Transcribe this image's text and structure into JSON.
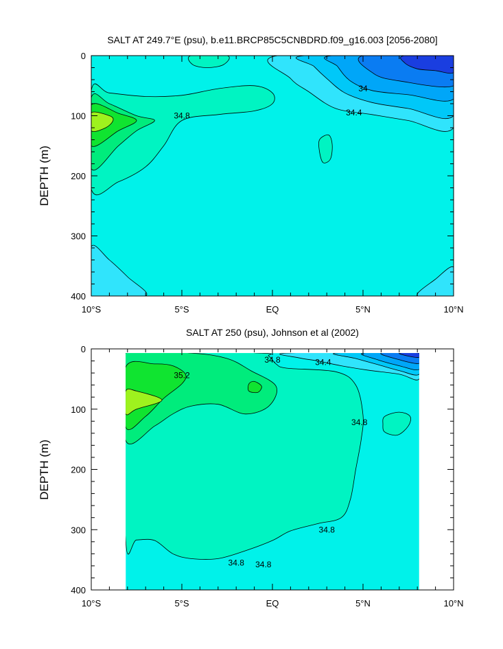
{
  "colors": {
    "c_lt_33_6": "#1a3ee0",
    "c_33_6_33_8": "#0a7cf2",
    "c_33_8_34_0": "#00a6f8",
    "c_34_0_34_2": "#00c8f8",
    "c_34_2_34_4": "#30e4fc",
    "c_34_4_34_8": "#00f2ea",
    "c_34_8_35_0": "#00f4c2",
    "c_35_0_35_2": "#00ec7c",
    "c_35_2_35_4": "#10e430",
    "c_gt_35_4": "#9ef21e"
  },
  "chart_data": [
    {
      "type": "contour",
      "title": "SALT AT 249.7°E (psu), b.e11.BRCP85C5CNBDRD.f09_g16.003 [2056-2080]",
      "ylabel": "DEPTH (m)",
      "xlim": [
        -10,
        10
      ],
      "ylim": [
        400,
        0
      ],
      "x_ticks": [
        -10,
        -5,
        0,
        5,
        10
      ],
      "x_tick_labels": [
        "10°S",
        "5°S",
        "EQ",
        "5°N",
        "10°N"
      ],
      "y_ticks": [
        0,
        100,
        200,
        300,
        400
      ],
      "y_tick_labels": [
        "0",
        "100",
        "200",
        "300",
        "400"
      ],
      "contour_labels": [
        {
          "text": "34.8",
          "x": -5.0,
          "y": 100
        },
        {
          "text": "34",
          "x": 5.0,
          "y": 55
        },
        {
          "text": "34.4",
          "x": 4.5,
          "y": 95
        }
      ],
      "regions": [
        {
          "level": "c_34_4_34_8",
          "pts": [
            [
              -10,
              0
            ],
            [
              10,
              0
            ],
            [
              10,
              400
            ],
            [
              -10,
              400
            ]
          ]
        },
        {
          "level": "c_34_8_35_0",
          "pts": [
            [
              -10,
              58
            ],
            [
              -9,
              62
            ],
            [
              -7,
              68
            ],
            [
              -5,
              66
            ],
            [
              -3,
              55
            ],
            [
              -1,
              50
            ],
            [
              0,
              62
            ],
            [
              0,
              80
            ],
            [
              -1,
              92
            ],
            [
              -3,
              98
            ],
            [
              -5,
              108
            ],
            [
              -6,
              150
            ],
            [
              -7,
              185
            ],
            [
              -8.5,
              210
            ],
            [
              -10,
              222
            ]
          ]
        },
        {
          "level": "c_35_0_35_2",
          "pts": [
            [
              -10,
              70
            ],
            [
              -9,
              80
            ],
            [
              -7.5,
              100
            ],
            [
              -6.5,
              108
            ],
            [
              -7.5,
              125
            ],
            [
              -8.5,
              150
            ],
            [
              -10,
              188
            ]
          ]
        },
        {
          "level": "c_35_2_35_4",
          "pts": [
            [
              -10,
              82
            ],
            [
              -8.5,
              96
            ],
            [
              -7.5,
              108
            ],
            [
              -8.5,
              125
            ],
            [
              -10,
              150
            ]
          ]
        },
        {
          "level": "c_gt_35_4",
          "pts": [
            [
              -10,
              95
            ],
            [
              -9,
              100
            ],
            [
              -8.8,
              108
            ],
            [
              -9.2,
              120
            ],
            [
              -10,
              125
            ]
          ]
        },
        {
          "level": "c_34_2_34_4",
          "pts": [
            [
              -10,
              318
            ],
            [
              -9,
              340
            ],
            [
              -8,
              368
            ],
            [
              -7,
              400
            ],
            [
              -10,
              400
            ]
          ]
        },
        {
          "level": "c_34_2_34_4",
          "pts": [
            [
              10,
              352
            ],
            [
              9,
              372
            ],
            [
              8,
              400
            ],
            [
              10,
              400
            ]
          ]
        },
        {
          "level": "c_34_8_35_0",
          "pts": [
            [
              -4.5,
              0
            ],
            [
              -2.5,
              0
            ],
            [
              -2.7,
              15
            ],
            [
              -3.6,
              20
            ],
            [
              -4.4,
              15
            ]
          ]
        },
        {
          "level": "c_34_8_35_0",
          "pts": [
            [
              2.6,
              140
            ],
            [
              3.1,
              132
            ],
            [
              3.3,
              148
            ],
            [
              3.2,
              172
            ],
            [
              2.8,
              178
            ],
            [
              2.6,
              160
            ]
          ]
        },
        {
          "level": "c_34_2_34_4",
          "pts": [
            [
              0.3,
              0
            ],
            [
              10,
              0
            ],
            [
              10,
              120
            ],
            [
              7.5,
              108
            ],
            [
              5.5,
              98
            ],
            [
              3.5,
              88
            ],
            [
              2,
              60
            ],
            [
              1,
              38
            ]
          ]
        },
        {
          "level": "c_34_0_34_2",
          "pts": [
            [
              1.8,
              0
            ],
            [
              10,
              0
            ],
            [
              10,
              100
            ],
            [
              7.5,
              88
            ],
            [
              5.5,
              78
            ],
            [
              4,
              62
            ],
            [
              3,
              38
            ],
            [
              2.3,
              18
            ]
          ]
        },
        {
          "level": "c_33_8_34_0",
          "pts": [
            [
              3.3,
              0
            ],
            [
              10,
              0
            ],
            [
              10,
              72
            ],
            [
              7.5,
              65
            ],
            [
              5.5,
              58
            ],
            [
              4.3,
              42
            ],
            [
              3.6,
              18
            ]
          ]
        },
        {
          "level": "c_33_6_33_8",
          "pts": [
            [
              5,
              0
            ],
            [
              10,
              0
            ],
            [
              10,
              50
            ],
            [
              7,
              42
            ],
            [
              5.6,
              30
            ]
          ]
        },
        {
          "level": "c_lt_33_6",
          "pts": [
            [
              7.3,
              0
            ],
            [
              10,
              0
            ],
            [
              10,
              28
            ],
            [
              9,
              25
            ],
            [
              8,
              22
            ],
            [
              7.3,
              12
            ]
          ]
        }
      ]
    },
    {
      "type": "contour",
      "title": "SALT AT 250 (psu), Johnson et al (2002)",
      "ylabel": "DEPTH (m)",
      "xlim": [
        -10,
        10
      ],
      "ylim": [
        400,
        0
      ],
      "data_xrange": [
        -8.1,
        8.1
      ],
      "data_yrange": [
        7,
        400
      ],
      "x_ticks": [
        -10,
        -5,
        0,
        5,
        10
      ],
      "x_tick_labels": [
        "10°S",
        "5°S",
        "EQ",
        "5°N",
        "10°N"
      ],
      "y_ticks": [
        0,
        100,
        200,
        300,
        400
      ],
      "y_tick_labels": [
        "0",
        "100",
        "200",
        "300",
        "400"
      ],
      "contour_labels": [
        {
          "text": "35.2",
          "x": -5.0,
          "y": 44
        },
        {
          "text": "34.8",
          "x": 0.0,
          "y": 18
        },
        {
          "text": "34.4",
          "x": 2.8,
          "y": 22
        },
        {
          "text": "34.8",
          "x": -0.5,
          "y": 358
        },
        {
          "text": "34.8",
          "x": 3.0,
          "y": 300
        },
        {
          "text": "34.8",
          "x": 4.8,
          "y": 122
        },
        {
          "text": "34.8",
          "x": -2.0,
          "y": 355
        }
      ],
      "regions": [
        {
          "level": "c_34_4_34_8",
          "pts": [
            [
              -8.1,
              7
            ],
            [
              8.1,
              7
            ],
            [
              8.1,
              400
            ],
            [
              -8.1,
              400
            ]
          ]
        },
        {
          "level": "c_34_8_35_0",
          "pts": [
            [
              -8.1,
              7
            ],
            [
              -0.8,
              7
            ],
            [
              -0.2,
              12
            ],
            [
              0.2,
              25
            ],
            [
              0.8,
              32
            ],
            [
              3.5,
              38
            ],
            [
              4.6,
              60
            ],
            [
              5.0,
              110
            ],
            [
              4.9,
              150
            ],
            [
              4.6,
              200
            ],
            [
              4.3,
              250
            ],
            [
              3.8,
              280
            ],
            [
              2.5,
              290
            ],
            [
              1,
              302
            ],
            [
              0,
              318
            ],
            [
              -1.5,
              335
            ],
            [
              -3,
              348
            ],
            [
              -4.5,
              348
            ],
            [
              -5.5,
              340
            ],
            [
              -6.5,
              318
            ],
            [
              -7.5,
              317
            ],
            [
              -8.1,
              318
            ]
          ]
        },
        {
          "level": "c_35_0_35_2",
          "pts": [
            [
              -8.1,
              7
            ],
            [
              -4.5,
              7
            ],
            [
              -2.5,
              16
            ],
            [
              -1.2,
              36
            ],
            [
              0.2,
              62
            ],
            [
              -0.2,
              95
            ],
            [
              -1.5,
              108
            ],
            [
              -3,
              92
            ],
            [
              -4.5,
              95
            ],
            [
              -5.5,
              108
            ],
            [
              -6.5,
              128
            ],
            [
              -8.1,
              152
            ]
          ]
        },
        {
          "level": "c_35_2_35_4",
          "pts": [
            [
              -8.1,
              30
            ],
            [
              -6.5,
              25
            ],
            [
              -5.5,
              28
            ],
            [
              -4.8,
              42
            ],
            [
              -5,
              58
            ],
            [
              -6,
              82
            ],
            [
              -7,
              112
            ],
            [
              -8.1,
              130
            ]
          ]
        },
        {
          "level": "c_gt_35_4",
          "pts": [
            [
              -8.1,
              70
            ],
            [
              -7.5,
              70
            ],
            [
              -6.1,
              85
            ],
            [
              -7.5,
              100
            ],
            [
              -8.1,
              108
            ]
          ]
        },
        {
          "level": "c_35_2_35_4",
          "pts": [
            [
              -1.3,
              58
            ],
            [
              -1.0,
              54
            ],
            [
              -0.6,
              62
            ],
            [
              -0.8,
              72
            ],
            [
              -1.3,
              70
            ]
          ]
        },
        {
          "level": "c_34_8_35_0",
          "pts": [
            [
              6.2,
              112
            ],
            [
              7.0,
              105
            ],
            [
              7.6,
              112
            ],
            [
              7.5,
              128
            ],
            [
              6.9,
              143
            ],
            [
              6.2,
              138
            ],
            [
              6.1,
              125
            ]
          ]
        },
        {
          "level": "c_34_2_34_4",
          "pts": [
            [
              0.8,
              7
            ],
            [
              8.1,
              7
            ],
            [
              8.1,
              50
            ],
            [
              7.0,
              42
            ],
            [
              5.2,
              35
            ],
            [
              3.8,
              28
            ],
            [
              2.5,
              20
            ],
            [
              1.5,
              15
            ]
          ]
        },
        {
          "level": "c_34_0_34_2",
          "pts": [
            [
              3.5,
              7
            ],
            [
              8.1,
              7
            ],
            [
              8.1,
              42
            ],
            [
              7.0,
              36
            ],
            [
              5.8,
              26
            ],
            [
              4.6,
              16
            ]
          ]
        },
        {
          "level": "c_33_8_34_0",
          "pts": [
            [
              5,
              7
            ],
            [
              8.1,
              7
            ],
            [
              8.1,
              34
            ],
            [
              7.0,
              28
            ],
            [
              5.8,
              18
            ]
          ]
        },
        {
          "level": "c_33_6_33_8",
          "pts": [
            [
              6,
              7
            ],
            [
              8.1,
              7
            ],
            [
              8.1,
              24
            ],
            [
              7.0,
              18
            ]
          ]
        },
        {
          "level": "c_lt_33_6",
          "pts": [
            [
              7,
              7
            ],
            [
              8.1,
              7
            ],
            [
              8.1,
              14
            ],
            [
              7.5,
              12
            ]
          ]
        }
      ]
    }
  ]
}
